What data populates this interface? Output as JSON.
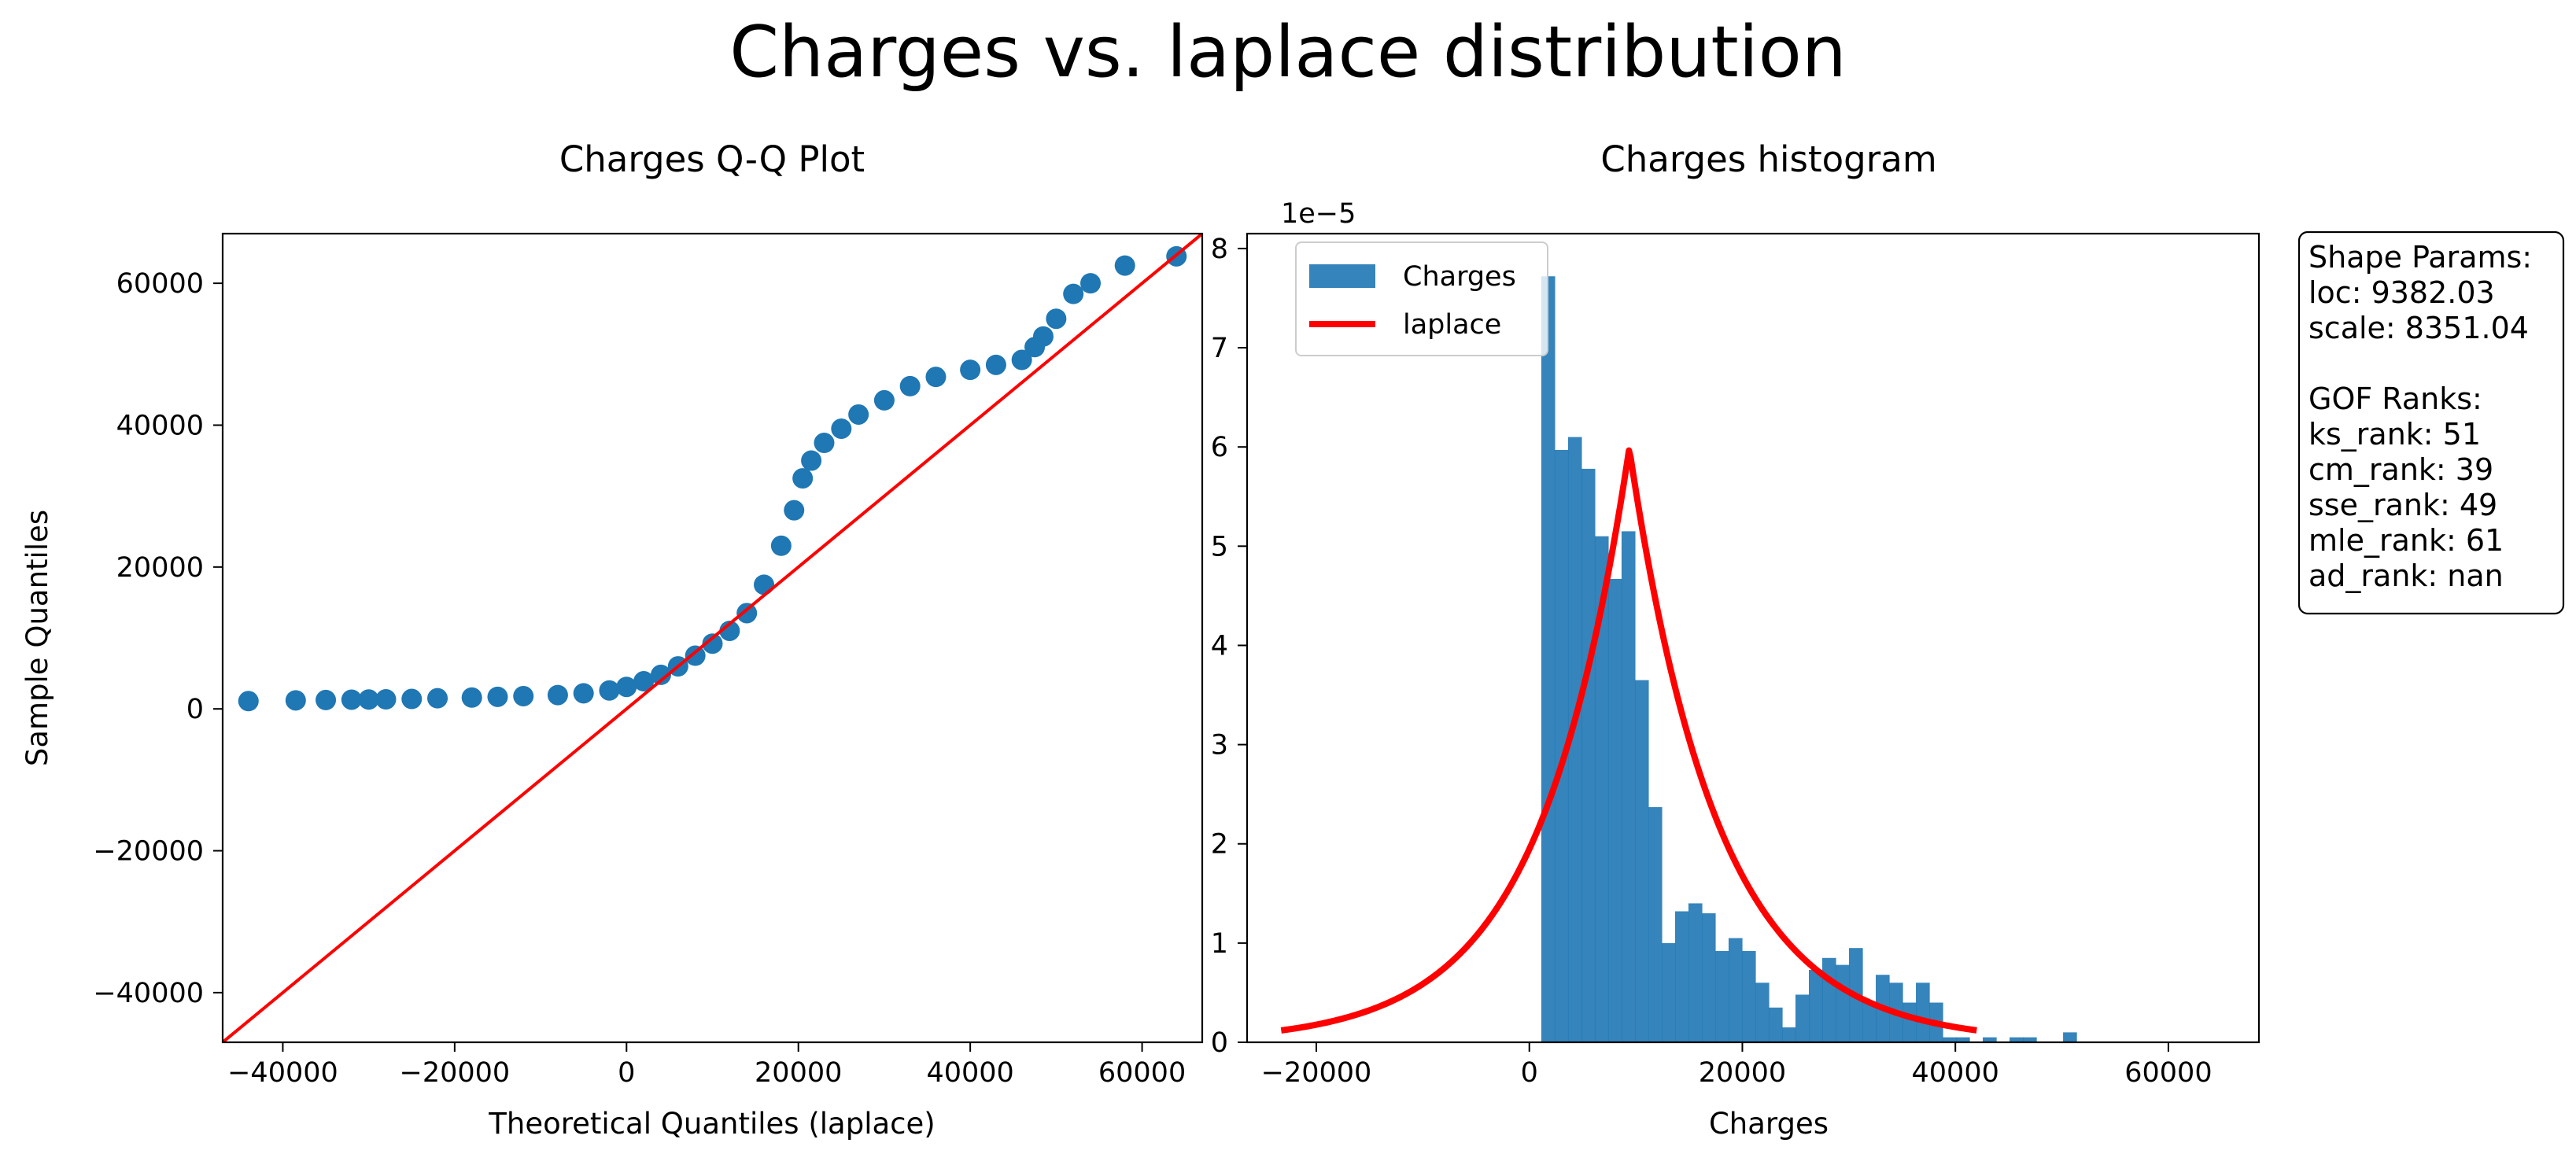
{
  "figure": {
    "title": "Charges vs. laplace distribution"
  },
  "chart_data": [
    {
      "type": "scatter",
      "title": "Charges Q-Q Plot",
      "xlabel": "Theoretical Quantiles (laplace)",
      "ylabel": "Sample Quantiles",
      "xlim": [
        -47000,
        67000
      ],
      "ylim": [
        -47000,
        67000
      ],
      "xticks": [
        -40000,
        -20000,
        0,
        20000,
        40000,
        60000
      ],
      "yticks": [
        -40000,
        -20000,
        0,
        20000,
        40000,
        60000
      ],
      "xtick_labels": [
        "−40000",
        "−20000",
        "0",
        "20000",
        "40000",
        "60000"
      ],
      "ytick_labels": [
        "−40000",
        "−20000",
        "0",
        "20000",
        "40000",
        "60000"
      ],
      "point_color": "#1f77b4",
      "reference_line_color": "#ff0000",
      "reference_line": [
        [
          -47000,
          -47000
        ],
        [
          67000,
          67000
        ]
      ],
      "series": [
        {
          "x": [
            -44000,
            -38500,
            -35000,
            -32000,
            -30000,
            -28000,
            -25000,
            -22000,
            -18000,
            -15000,
            -12000,
            -8000,
            -5000,
            -2000,
            0,
            2000,
            4000,
            6000,
            8000,
            10000,
            12000,
            14000,
            16000,
            18000,
            19500,
            20500,
            21500,
            23000,
            25000,
            27000,
            30000,
            33000,
            36000,
            40000,
            43000,
            46000,
            47500,
            48500,
            50000,
            52000,
            54000,
            58000,
            64000
          ],
          "y": [
            1100,
            1200,
            1250,
            1300,
            1320,
            1350,
            1400,
            1500,
            1600,
            1700,
            1800,
            1950,
            2200,
            2600,
            3100,
            3900,
            4800,
            6000,
            7500,
            9200,
            11000,
            13500,
            17500,
            23000,
            28000,
            32500,
            35000,
            37500,
            39500,
            41500,
            43500,
            45500,
            46800,
            47800,
            48500,
            49200,
            51000,
            52500,
            55000,
            58500,
            60000,
            62500,
            63800
          ]
        }
      ]
    },
    {
      "type": "bar",
      "title": "Charges histogram",
      "xlabel": "Charges",
      "ylabel": "",
      "scale_label": "1e−5",
      "xlim": [
        -26500,
        68500
      ],
      "ylim": [
        0,
        8.15
      ],
      "xticks": [
        -20000,
        0,
        20000,
        40000,
        60000
      ],
      "xtick_labels": [
        "−20000",
        "0",
        "20000",
        "40000",
        "60000"
      ],
      "yticks": [
        0,
        1,
        2,
        3,
        4,
        5,
        6,
        7,
        8
      ],
      "ytick_labels": [
        "0",
        "1",
        "2",
        "3",
        "4",
        "5",
        "6",
        "7",
        "8"
      ],
      "legend_position": "top-left",
      "legend": [
        "Charges",
        "laplace"
      ],
      "bar_color": "#1f77b4",
      "curve_color": "#ff0000",
      "bins": {
        "start": 1121.87,
        "width": 1256.16
      },
      "series": [
        {
          "name": "Charges",
          "values": [
            7.72,
            5.97,
            6.1,
            5.78,
            5.1,
            4.67,
            5.15,
            3.65,
            2.37,
            1.0,
            1.32,
            1.4,
            1.3,
            0.92,
            1.05,
            0.92,
            0.6,
            0.35,
            0.15,
            0.48,
            0.73,
            0.85,
            0.78,
            0.95,
            0.4,
            0.68,
            0.6,
            0.4,
            0.6,
            0.4,
            0.05,
            0.05,
            0.0,
            0.05,
            0.0,
            0.05,
            0.05,
            0.0,
            0.0,
            0.1
          ]
        },
        {
          "name": "laplace",
          "loc": 9382.03,
          "scale": 8351.04,
          "x_range": [
            -23300,
            42000
          ]
        }
      ]
    }
  ],
  "info_box": {
    "lines": [
      "Shape Params:",
      "loc: 9382.03",
      "scale: 8351.04",
      "",
      "GOF Ranks:",
      "ks_rank: 51",
      "cm_rank: 39",
      "sse_rank: 49",
      "mle_rank: 61",
      "ad_rank: nan"
    ]
  }
}
